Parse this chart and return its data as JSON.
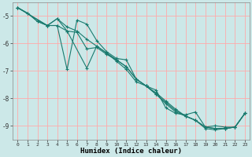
{
  "xlabel": "Humidex (Indice chaleur)",
  "bg_color": "#cce8e8",
  "grid_color": "#ffaaaa",
  "line_color": "#1a7a6e",
  "xlim": [
    -0.5,
    23.5
  ],
  "ylim": [
    -9.5,
    -4.5
  ],
  "yticks": [
    -9,
    -8,
    -7,
    -6,
    -5
  ],
  "xticks": [
    0,
    1,
    2,
    3,
    4,
    5,
    6,
    7,
    8,
    9,
    10,
    11,
    12,
    13,
    14,
    15,
    16,
    17,
    18,
    19,
    20,
    21,
    22,
    23
  ],
  "lines": [
    {
      "x": [
        0,
        1,
        2,
        3,
        4,
        5,
        6,
        7,
        8,
        9,
        10,
        11,
        12,
        13,
        14,
        15,
        16,
        17,
        18,
        19,
        20,
        21,
        22,
        23
      ],
      "y": [
        -4.7,
        -4.9,
        -5.2,
        -5.35,
        -5.35,
        -6.95,
        -5.15,
        -5.3,
        -5.9,
        -6.3,
        -6.55,
        -6.6,
        -7.3,
        -7.55,
        -7.7,
        -8.35,
        -8.55,
        -8.6,
        -8.5,
        -9.05,
        -9.0,
        -9.05,
        -9.05,
        -8.55
      ]
    },
    {
      "x": [
        0,
        3,
        4,
        5,
        6,
        7,
        8,
        9,
        10,
        11,
        12,
        13,
        14,
        15,
        16,
        17,
        18,
        19,
        20,
        21,
        22,
        23
      ],
      "y": [
        -4.7,
        -5.35,
        -5.35,
        -5.55,
        -5.6,
        -6.2,
        -6.15,
        -6.4,
        -6.6,
        -6.85,
        -7.3,
        -7.55,
        -7.8,
        -8.1,
        -8.4,
        -8.65,
        -8.8,
        -9.05,
        -9.1,
        -9.1,
        -9.05,
        -8.55
      ]
    },
    {
      "x": [
        0,
        3,
        4,
        5,
        6,
        7,
        8,
        9,
        10,
        11,
        12,
        13,
        14,
        15,
        16,
        17,
        18,
        19,
        20,
        21,
        22,
        23
      ],
      "y": [
        -4.7,
        -5.35,
        -5.1,
        -5.4,
        -5.55,
        -5.85,
        -6.1,
        -6.35,
        -6.65,
        -6.95,
        -7.4,
        -7.55,
        -7.85,
        -8.2,
        -8.5,
        -8.65,
        -8.8,
        -9.1,
        -9.15,
        -9.1,
        -9.05,
        -8.55
      ]
    },
    {
      "x": [
        0,
        1,
        2,
        3,
        4,
        5,
        7,
        8,
        9,
        10,
        11,
        12,
        13,
        14,
        15,
        16,
        17,
        18,
        19,
        20,
        21,
        22,
        23
      ],
      "y": [
        -4.7,
        -4.9,
        -5.2,
        -5.35,
        -5.1,
        -5.55,
        -6.9,
        -6.1,
        -6.35,
        -6.6,
        -6.85,
        -7.3,
        -7.55,
        -7.85,
        -8.15,
        -8.45,
        -8.65,
        -8.8,
        -9.05,
        -9.1,
        -9.1,
        -9.05,
        -8.55
      ]
    }
  ]
}
